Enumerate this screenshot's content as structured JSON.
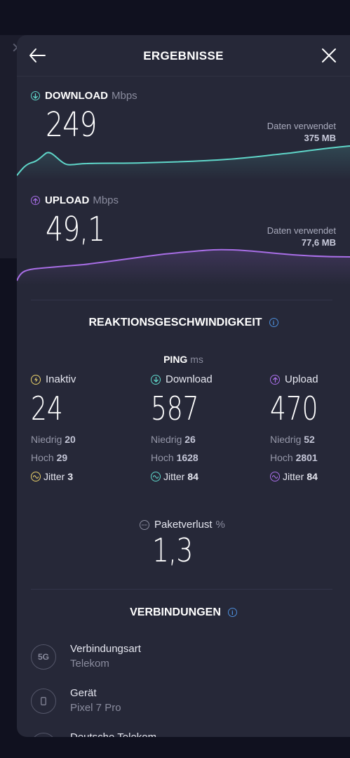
{
  "header": {
    "title": "ERGEBNISSE"
  },
  "download": {
    "label": "DOWNLOAD",
    "unit": "Mbps",
    "value": "249",
    "used_label": "Daten verwendet",
    "used_value": "375 MB",
    "color": "#5fd6c9"
  },
  "upload": {
    "label": "UPLOAD",
    "unit": "Mbps",
    "value": "49,1",
    "used_label": "Daten verwendet",
    "used_value": "77,6 MB",
    "color": "#a86ee6"
  },
  "responsiveness": {
    "title": "REAKTIONSGESCHWINDIGKEIT",
    "ping_label": "PING",
    "ping_unit": "ms",
    "columns": [
      {
        "label": "Inaktiv",
        "value": "24",
        "low_label": "Niedrig",
        "low": "20",
        "high_label": "Hoch",
        "high": "29",
        "jitter_label": "Jitter",
        "jitter": "3",
        "color": "#e8d06a"
      },
      {
        "label": "Download",
        "value": "587",
        "low_label": "Niedrig",
        "low": "26",
        "high_label": "Hoch",
        "high": "1628",
        "jitter_label": "Jitter",
        "jitter": "84",
        "color": "#5fd6c9"
      },
      {
        "label": "Upload",
        "value": "470",
        "low_label": "Niedrig",
        "low": "52",
        "high_label": "Hoch",
        "high": "2801",
        "jitter_label": "Jitter",
        "jitter": "84",
        "color": "#a86ee6"
      }
    ],
    "packet_loss_label": "Paketverlust",
    "packet_loss_unit": "%",
    "packet_loss": "1,3"
  },
  "connections": {
    "title": "VERBINDUNGEN",
    "items": [
      {
        "icon": "5g-icon",
        "icon_text": "5G",
        "title": "Verbindungsart",
        "subtitle": "Telekom"
      },
      {
        "icon": "phone-icon",
        "title": "Gerät",
        "subtitle": "Pixel 7 Pro"
      },
      {
        "icon": "server-icon",
        "title": "Deutsche Telekom"
      }
    ]
  }
}
